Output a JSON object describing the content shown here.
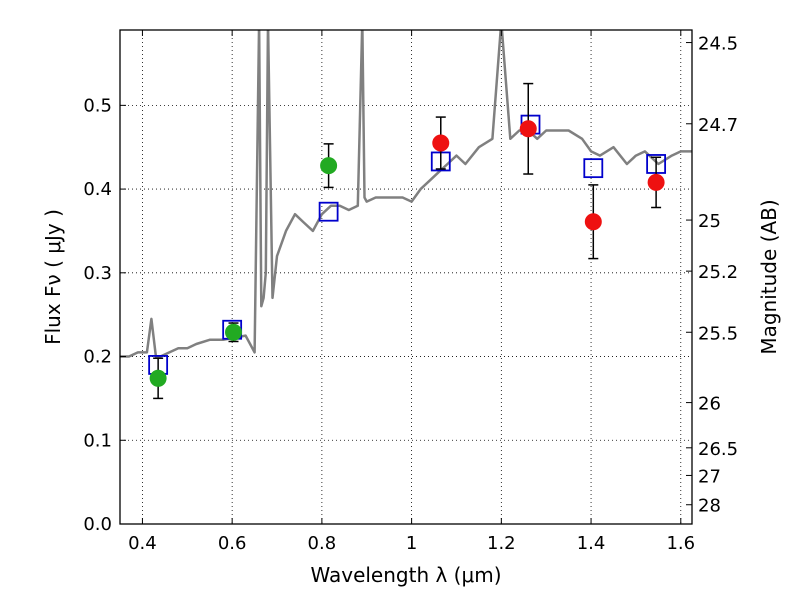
{
  "chart_data": {
    "type": "scatter",
    "title": "",
    "xlabel": "Wavelength  λ (μm)",
    "ylabel": "Flux  Fν  ( μJy )",
    "y2label": "Magnitude (AB)",
    "xlim": [
      0.35,
      1.625
    ],
    "ylim": [
      0.0,
      0.59
    ],
    "grid": true,
    "x_ticks": [
      0.4,
      0.6,
      0.8,
      1.0,
      1.2,
      1.4,
      1.6
    ],
    "x_tick_labels": [
      "0.4",
      "0.6",
      "0.8",
      "1",
      "1.2",
      "1.4",
      "1.6"
    ],
    "y_ticks": [
      0.0,
      0.1,
      0.2,
      0.3,
      0.4,
      0.5
    ],
    "y_tick_labels": [
      "0.0",
      "0.1",
      "0.2",
      "0.3",
      "0.4",
      "0.5"
    ],
    "y2_ticks": [
      {
        "label": "24.5",
        "flux": 0.575
      },
      {
        "label": "24.7",
        "flux": 0.478
      },
      {
        "label": "25",
        "flux": 0.363
      },
      {
        "label": "25.2",
        "flux": 0.302
      },
      {
        "label": "25.5",
        "flux": 0.229
      },
      {
        "label": "26",
        "flux": 0.145
      },
      {
        "label": "26.5",
        "flux": 0.091
      },
      {
        "label": "27",
        "flux": 0.058
      },
      {
        "label": "28",
        "flux": 0.023
      }
    ],
    "series": [
      {
        "kind": "line",
        "color": "#808080",
        "x": [
          0.35,
          0.37,
          0.39,
          0.41,
          0.42,
          0.43,
          0.44,
          0.46,
          0.48,
          0.5,
          0.52,
          0.55,
          0.58,
          0.6,
          0.63,
          0.65,
          0.66,
          0.665,
          0.67,
          0.675,
          0.68,
          0.69,
          0.7,
          0.72,
          0.74,
          0.76,
          0.78,
          0.8,
          0.82,
          0.84,
          0.86,
          0.88,
          0.89,
          0.895,
          0.9,
          0.92,
          0.95,
          0.98,
          1.0,
          1.02,
          1.04,
          1.06,
          1.08,
          1.1,
          1.12,
          1.15,
          1.18,
          1.2,
          1.22,
          1.24,
          1.26,
          1.28,
          1.3,
          1.32,
          1.35,
          1.38,
          1.4,
          1.42,
          1.45,
          1.48,
          1.5,
          1.52,
          1.55,
          1.58,
          1.6,
          1.625
        ],
        "y": [
          0.2,
          0.2,
          0.205,
          0.205,
          0.245,
          0.2,
          0.2,
          0.205,
          0.21,
          0.21,
          0.215,
          0.22,
          0.22,
          0.222,
          0.225,
          0.205,
          0.6,
          0.26,
          0.27,
          0.3,
          0.6,
          0.27,
          0.32,
          0.35,
          0.37,
          0.36,
          0.35,
          0.37,
          0.38,
          0.38,
          0.375,
          0.38,
          0.6,
          0.39,
          0.385,
          0.39,
          0.39,
          0.39,
          0.385,
          0.4,
          0.41,
          0.42,
          0.43,
          0.44,
          0.43,
          0.45,
          0.46,
          0.6,
          0.46,
          0.47,
          0.47,
          0.46,
          0.47,
          0.47,
          0.47,
          0.46,
          0.445,
          0.44,
          0.45,
          0.43,
          0.44,
          0.445,
          0.43,
          0.44,
          0.445,
          0.445
        ]
      },
      {
        "kind": "open-square",
        "color": "#0000cc",
        "x": [
          0.435,
          0.6,
          0.815,
          1.065,
          1.265,
          1.405,
          1.545
        ],
        "y": [
          0.19,
          0.232,
          0.373,
          0.433,
          0.477,
          0.425,
          0.43
        ]
      },
      {
        "kind": "dot",
        "color": "#22aa22",
        "x": [
          0.435,
          0.603,
          0.815
        ],
        "y": [
          0.174,
          0.229,
          0.428
        ],
        "yerr": [
          0.024,
          0.011,
          0.026
        ]
      },
      {
        "kind": "dot",
        "color": "#ee1111",
        "x": [
          1.065,
          1.26,
          1.405,
          1.545
        ],
        "y": [
          0.455,
          0.472,
          0.361,
          0.408
        ],
        "yerr": [
          0.031,
          0.054,
          0.044,
          0.03
        ]
      }
    ]
  }
}
